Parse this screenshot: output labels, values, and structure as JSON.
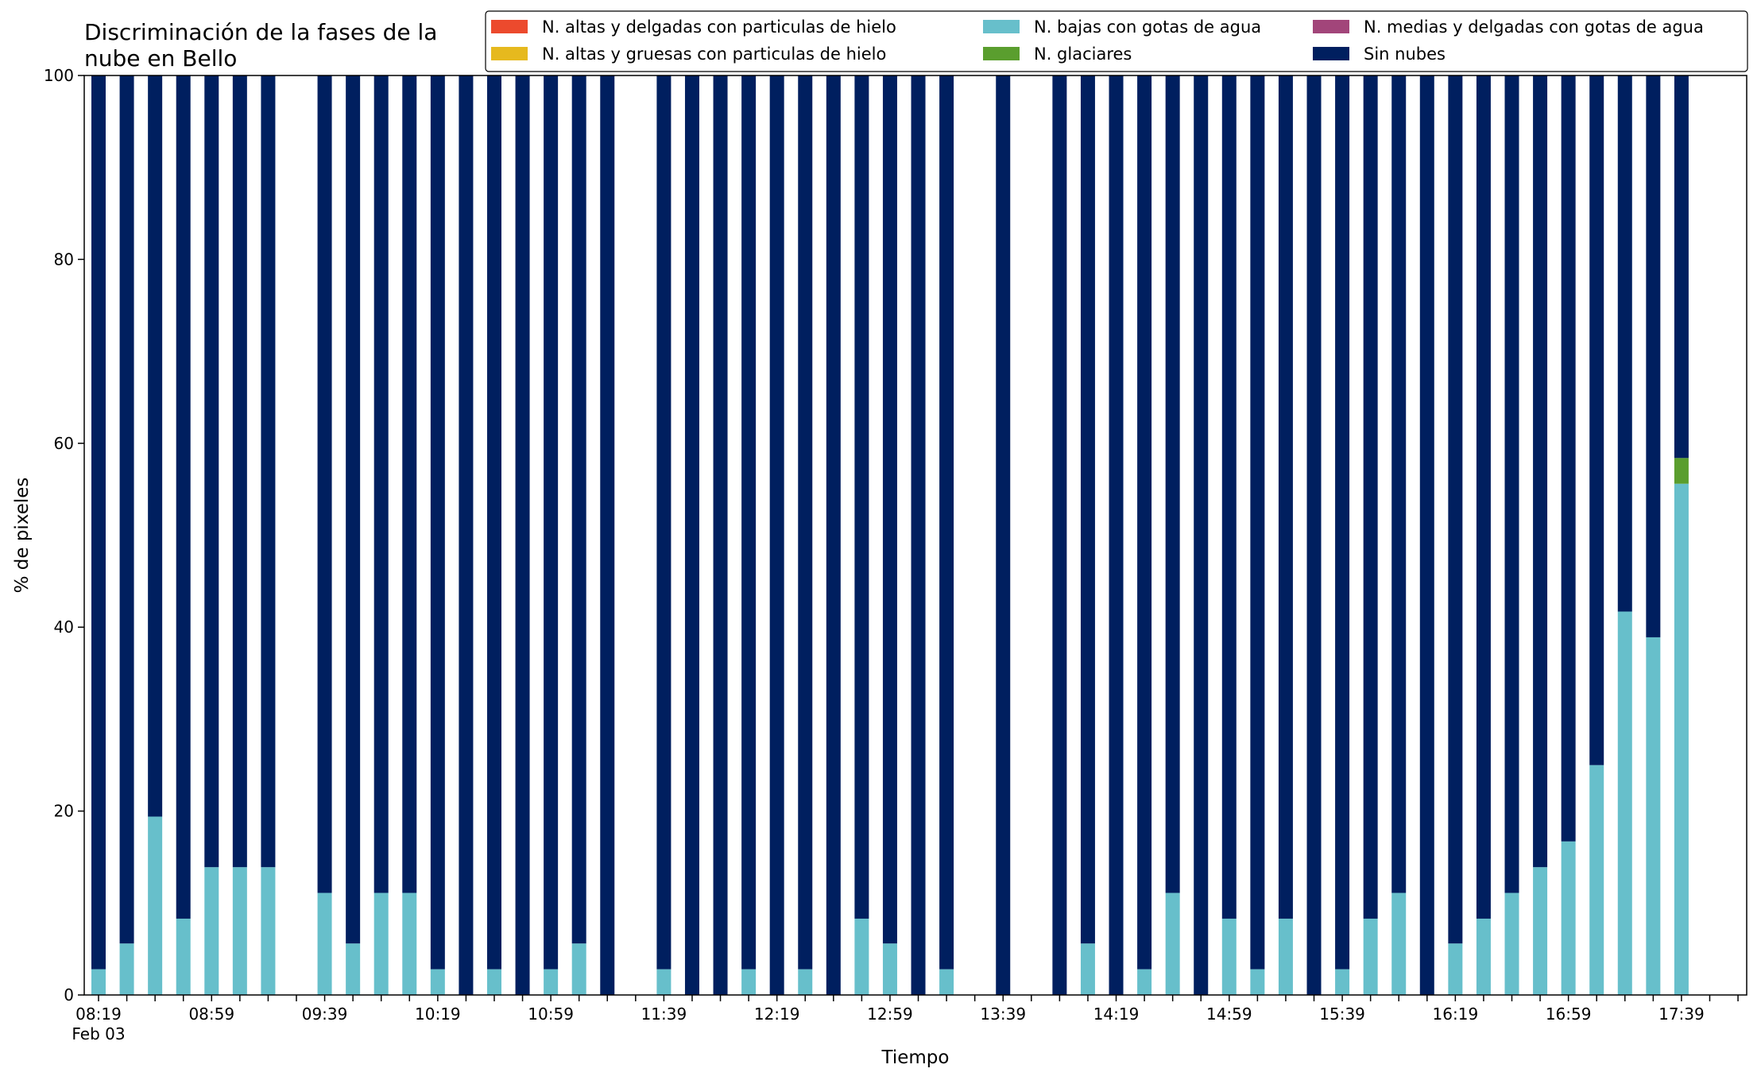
{
  "chart_data": {
    "type": "bar",
    "stacked": true,
    "title": "Discriminación de la fases de la\nnube en Bello",
    "xlabel": "Tiempo",
    "ylabel": "% de pixeles",
    "ylim": [
      0,
      100
    ],
    "yticks": [
      0,
      20,
      40,
      60,
      80,
      100
    ],
    "x_start_time": "08:19",
    "x_step_minutes": 10,
    "x_tick_labels": [
      "08:19",
      "08:59",
      "09:39",
      "10:19",
      "10:59",
      "11:39",
      "12:19",
      "12:59",
      "13:39",
      "14:19",
      "14:59",
      "15:39",
      "16:19",
      "16:59",
      "17:39"
    ],
    "x_date_label": "Feb 03",
    "legend_position": "top-right",
    "legend_columns": 3,
    "series": [
      {
        "name": "N. altas y delgadas con particulas de hielo",
        "color": "#ec4a2d",
        "values": [
          0,
          0,
          0,
          0,
          0,
          0,
          0,
          0,
          0,
          0,
          0,
          0,
          0,
          0,
          0,
          0,
          0,
          0,
          0,
          0,
          0,
          0,
          0,
          0,
          0,
          0,
          0,
          0,
          0,
          0,
          0,
          0,
          0,
          0,
          0,
          0,
          0,
          0,
          0,
          0,
          0,
          0,
          0,
          0,
          0,
          0,
          0,
          0,
          0,
          0,
          0,
          0,
          0,
          0,
          0,
          0,
          0
        ]
      },
      {
        "name": "N. altas y gruesas con particulas de hielo",
        "color": "#e6b91e",
        "values": [
          0,
          0,
          0,
          0,
          0,
          0,
          0,
          0,
          0,
          0,
          0,
          0,
          0,
          0,
          0,
          0,
          0,
          0,
          0,
          0,
          0,
          0,
          0,
          0,
          0,
          0,
          0,
          0,
          0,
          0,
          0,
          0,
          0,
          0,
          0,
          0,
          0,
          0,
          0,
          0,
          0,
          0,
          0,
          0,
          0,
          0,
          0,
          0,
          0,
          0,
          0,
          0,
          0,
          0,
          0,
          0,
          0
        ]
      },
      {
        "name": "N. bajas con gotas de agua",
        "color": "#67bfcb",
        "values": [
          2.8,
          5.6,
          19.4,
          8.3,
          13.9,
          13.9,
          13.9,
          null,
          11.1,
          5.6,
          11.1,
          11.1,
          2.8,
          0,
          2.8,
          0,
          2.8,
          5.6,
          0,
          null,
          2.8,
          0,
          0,
          2.8,
          0,
          2.8,
          0,
          8.3,
          5.6,
          0,
          2.8,
          null,
          0,
          null,
          0,
          5.6,
          0,
          2.8,
          11.1,
          0,
          8.3,
          2.8,
          8.3,
          0,
          2.8,
          8.3,
          11.1,
          0,
          5.6,
          8.3,
          11.1,
          13.9,
          16.7,
          25.0,
          41.7,
          38.9,
          55.6
        ]
      },
      {
        "name": "N. glaciares",
        "color": "#5a9e2e",
        "values": [
          0,
          0,
          0,
          0,
          0,
          0,
          0,
          null,
          0,
          0,
          0,
          0,
          0,
          0,
          0,
          0,
          0,
          0,
          0,
          null,
          0,
          0,
          0,
          0,
          0,
          0,
          0,
          0,
          0,
          0,
          0,
          null,
          0,
          null,
          0,
          0,
          0,
          0,
          0,
          0,
          0,
          0,
          0,
          0,
          0,
          0,
          0,
          0,
          0,
          0,
          0,
          0,
          0,
          0,
          0,
          0,
          2.8
        ]
      },
      {
        "name": "N. medias y delgadas con gotas de agua",
        "color": "#a2457a",
        "values": [
          0,
          0,
          0,
          0,
          0,
          0,
          0,
          null,
          0,
          0,
          0,
          0,
          0,
          0,
          0,
          0,
          0,
          0,
          0,
          null,
          0,
          0,
          0,
          0,
          0,
          0,
          0,
          0,
          0,
          0,
          0,
          null,
          0,
          null,
          0,
          0,
          0,
          0,
          0,
          0,
          0,
          0,
          0,
          0,
          0,
          0,
          0,
          0,
          0,
          0,
          0,
          0,
          0,
          0,
          0,
          0,
          0
        ]
      },
      {
        "name": "Sin nubes",
        "color": "#001f5f",
        "values": [
          97.2,
          94.4,
          80.6,
          91.7,
          86.1,
          86.1,
          86.1,
          null,
          88.9,
          94.4,
          88.9,
          88.9,
          97.2,
          100,
          97.2,
          100,
          97.2,
          94.4,
          100,
          null,
          97.2,
          100,
          100,
          97.2,
          100,
          97.2,
          100,
          91.7,
          94.4,
          100,
          97.2,
          null,
          100,
          null,
          100,
          94.4,
          100,
          97.2,
          88.9,
          100,
          91.7,
          97.2,
          91.7,
          100,
          97.2,
          91.7,
          88.9,
          100,
          94.4,
          91.7,
          88.9,
          86.1,
          83.3,
          75.0,
          58.3,
          61.1,
          41.6
        ]
      }
    ]
  }
}
